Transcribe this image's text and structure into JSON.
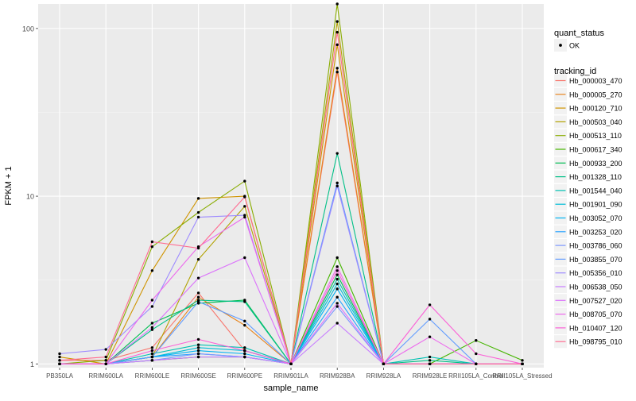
{
  "chart_data": {
    "type": "line",
    "xlabel": "sample_name",
    "ylabel": "FPKM + 1",
    "y_scale": "log10",
    "ylim": [
      0.95,
      140
    ],
    "y_ticks": [
      1,
      10,
      100
    ],
    "y_tick_labels": [
      "1",
      "10",
      "100"
    ],
    "grid": true,
    "legend_position": "right",
    "categories": [
      "PB350LA",
      "RRIM600LA",
      "RRIM600LE",
      "RRIM600SE",
      "RRIM600PE",
      "RRIM901LA",
      "RRIM928BA",
      "RRIM928LA",
      "RRIM928LE",
      "RRII105LA_Control",
      "RRII105LA_Stressed"
    ],
    "point_legend": {
      "title": "quant_status",
      "items": [
        "OK"
      ]
    },
    "line_legend_title": "tracking_id",
    "series": [
      {
        "name": "Hb_000003_470",
        "color": "#F8766D",
        "values": [
          1.05,
          1.05,
          1.25,
          2.65,
          1.2,
          1.0,
          55.0,
          1.0,
          1.0,
          1.0,
          1.0
        ]
      },
      {
        "name": "Hb_000005_270",
        "color": "#E7851E",
        "values": [
          1.0,
          1.0,
          1.1,
          2.5,
          1.7,
          1.0,
          58.0,
          1.0,
          1.0,
          1.0,
          1.0
        ]
      },
      {
        "name": "Hb_000120_710",
        "color": "#D09400",
        "values": [
          1.1,
          1.0,
          3.6,
          9.7,
          10.0,
          1.0,
          80.0,
          1.0,
          1.0,
          1.0,
          1.0
        ]
      },
      {
        "name": "Hb_000503_040",
        "color": "#B2A100",
        "values": [
          1.0,
          1.0,
          1.1,
          4.2,
          8.7,
          1.0,
          110.0,
          1.0,
          1.0,
          1.0,
          1.0
        ]
      },
      {
        "name": "Hb_000513_110",
        "color": "#89AC00",
        "values": [
          1.0,
          1.05,
          5.0,
          8.0,
          12.3,
          1.0,
          140.0,
          1.0,
          1.0,
          1.0,
          1.0
        ]
      },
      {
        "name": "Hb_000617_340",
        "color": "#45B500",
        "values": [
          1.0,
          1.0,
          1.05,
          1.1,
          1.1,
          1.0,
          4.3,
          1.0,
          1.0,
          1.38,
          1.05
        ]
      },
      {
        "name": "Hb_000933_200",
        "color": "#00BC51",
        "values": [
          1.0,
          1.0,
          1.75,
          2.3,
          2.4,
          1.0,
          3.4,
          1.0,
          1.0,
          1.0,
          1.0
        ]
      },
      {
        "name": "Hb_001328_110",
        "color": "#00C087",
        "values": [
          1.0,
          1.0,
          1.6,
          2.4,
          2.35,
          1.0,
          18.0,
          1.0,
          1.05,
          1.0,
          1.0
        ]
      },
      {
        "name": "Hb_001544_040",
        "color": "#00C0B2",
        "values": [
          1.0,
          1.0,
          1.15,
          1.3,
          1.25,
          1.0,
          3.2,
          1.0,
          1.1,
          1.0,
          1.0
        ]
      },
      {
        "name": "Hb_001901_090",
        "color": "#00BCD6",
        "values": [
          1.0,
          1.0,
          1.1,
          1.25,
          1.2,
          1.0,
          3.0,
          1.0,
          1.0,
          1.0,
          1.0
        ]
      },
      {
        "name": "Hb_003052_070",
        "color": "#00B3F2",
        "values": [
          1.0,
          1.0,
          1.1,
          1.2,
          1.15,
          1.0,
          2.8,
          1.0,
          1.0,
          1.0,
          1.0
        ]
      },
      {
        "name": "Hb_003253_020",
        "color": "#29A3FF",
        "values": [
          1.0,
          1.0,
          1.1,
          1.15,
          1.1,
          1.0,
          2.5,
          1.0,
          1.0,
          1.0,
          1.0
        ]
      },
      {
        "name": "Hb_003786_060",
        "color": "#7C96FF",
        "values": [
          1.0,
          1.0,
          1.05,
          1.15,
          1.1,
          1.0,
          2.2,
          1.0,
          1.0,
          1.0,
          1.0
        ]
      },
      {
        "name": "Hb_003855_070",
        "color": "#619CFF",
        "values": [
          1.0,
          1.0,
          1.1,
          2.35,
          1.8,
          1.0,
          12.0,
          1.0,
          1.85,
          1.0,
          1.0
        ]
      },
      {
        "name": "Hb_005356_010",
        "color": "#9D8AFF",
        "values": [
          1.15,
          1.22,
          2.2,
          7.5,
          7.7,
          1.0,
          11.5,
          1.0,
          1.0,
          1.0,
          1.0
        ]
      },
      {
        "name": "Hb_006538_050",
        "color": "#C77CFF",
        "values": [
          1.0,
          1.0,
          1.05,
          1.1,
          1.1,
          1.0,
          1.75,
          1.0,
          1.0,
          1.0,
          1.0
        ]
      },
      {
        "name": "Hb_007527_020",
        "color": "#DB72FB",
        "values": [
          1.0,
          1.0,
          1.65,
          3.25,
          4.3,
          1.0,
          2.3,
          1.0,
          1.0,
          1.0,
          1.0
        ]
      },
      {
        "name": "Hb_008705_070",
        "color": "#ED68ED",
        "values": [
          1.0,
          1.0,
          2.4,
          5.0,
          7.5,
          1.0,
          3.8,
          1.0,
          1.45,
          1.0,
          1.0
        ]
      },
      {
        "name": "Hb_010407_120",
        "color": "#FB61D7",
        "values": [
          1.0,
          1.0,
          1.2,
          1.4,
          1.2,
          1.0,
          3.6,
          1.0,
          2.25,
          1.15,
          1.0
        ]
      },
      {
        "name": "Hb_098795_010",
        "color": "#FF6C91",
        "values": [
          1.05,
          1.1,
          5.35,
          4.9,
          9.9,
          1.0,
          95.0,
          1.0,
          1.0,
          1.0,
          1.0
        ]
      }
    ]
  }
}
